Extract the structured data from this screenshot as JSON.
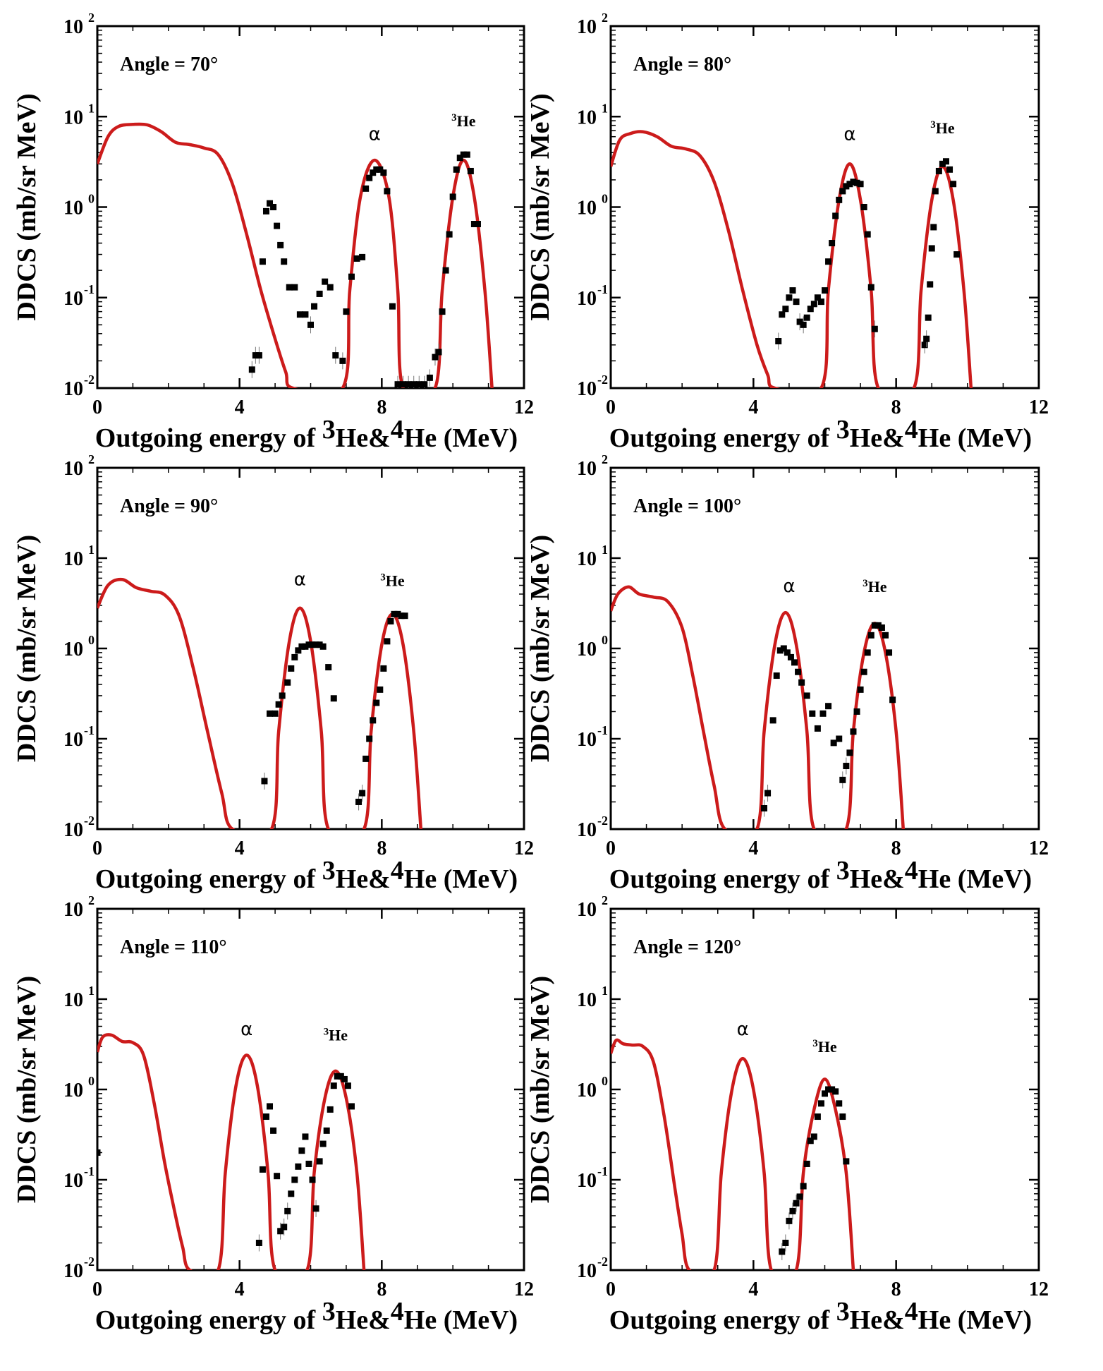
{
  "xlabel_prefix": "Outgoing energy of ",
  "xlabel_he3": "He&",
  "xlabel_he4": "He (MeV)",
  "xlabel_sup3": "3",
  "xlabel_sup4": "4",
  "ylabel": "DDCS (mb/sr MeV)",
  "alpha_symbol": "α",
  "he3_sup": "3",
  "he3_base": "He",
  "y_tick_exponents": [
    "-2",
    "-1",
    "0",
    "1",
    "2"
  ],
  "y_tick_base": "10",
  "colors": {
    "theory": "#cc1b1b",
    "experiment": "#000000"
  },
  "chart_data": [
    {
      "type": "line+scatter",
      "title": "Angle = 70°",
      "xlim": [
        0,
        12
      ],
      "ylim": [
        0.01,
        100
      ],
      "yscale": "log",
      "xticks": [
        "0",
        "4",
        "8",
        "12"
      ],
      "peak_labels": [
        {
          "text": "α",
          "x": 7.8,
          "y": 5.5
        },
        {
          "text": "3He",
          "x": 10.3,
          "y": 7.8
        }
      ],
      "series": [
        {
          "name": "",
          "kind": "theory-line",
          "x": [
            0,
            0.3,
            0.6,
            1.0,
            1.4,
            1.8,
            2.2,
            2.6,
            3.0,
            3.4,
            3.8,
            4.2,
            4.6,
            5.0,
            5.3,
            5.5,
            6.9,
            7.1,
            7.4,
            7.8,
            8.2,
            8.45,
            8.6,
            9.5,
            9.7,
            10.0,
            10.3,
            10.6,
            10.9,
            11.1
          ],
          "y": [
            3.0,
            6.0,
            7.8,
            8.2,
            8.1,
            6.8,
            5.2,
            4.9,
            4.5,
            3.8,
            1.8,
            0.5,
            0.12,
            0.035,
            0.015,
            0.01,
            0.01,
            0.12,
            1.3,
            3.3,
            1.3,
            0.12,
            0.01,
            0.01,
            0.12,
            1.3,
            3.3,
            1.3,
            0.12,
            0.01
          ]
        },
        {
          "name": "",
          "kind": "experiment",
          "x": [
            4.35,
            4.45,
            4.55,
            4.65,
            4.75,
            4.85,
            4.95,
            5.05,
            5.15,
            5.25,
            5.4,
            5.55,
            5.7,
            5.85,
            6.0,
            6.1,
            6.25,
            6.4,
            6.55,
            6.7,
            6.9,
            7.0,
            7.15,
            7.3,
            7.45,
            7.55,
            7.65,
            7.75,
            7.85,
            7.95,
            8.05,
            8.15,
            8.3,
            8.45,
            8.6,
            8.75,
            8.9,
            9.05,
            9.2,
            9.35,
            9.5,
            9.6,
            9.7,
            9.8,
            9.9,
            10.0,
            10.1,
            10.2,
            10.3,
            10.4,
            10.5,
            10.6,
            10.7
          ],
          "y": [
            0.016,
            0.023,
            0.023,
            0.25,
            0.9,
            1.1,
            1.0,
            0.62,
            0.38,
            0.25,
            0.13,
            0.13,
            0.065,
            0.065,
            0.05,
            0.08,
            0.11,
            0.15,
            0.13,
            0.023,
            0.02,
            0.07,
            0.17,
            0.27,
            0.28,
            1.6,
            2.1,
            2.4,
            2.6,
            2.6,
            2.4,
            1.5,
            0.08,
            0.011,
            0.011,
            0.011,
            0.011,
            0.011,
            0.011,
            0.013,
            0.022,
            0.025,
            0.07,
            0.2,
            0.5,
            1.3,
            2.6,
            3.5,
            3.8,
            3.8,
            2.5,
            0.65,
            0.65
          ]
        }
      ]
    },
    {
      "type": "line+scatter",
      "title": "Angle = 80°",
      "xlim": [
        0,
        12
      ],
      "ylim": [
        0.01,
        100
      ],
      "yscale": "log",
      "xticks": [
        "0",
        "4",
        "8",
        "12"
      ],
      "peak_labels": [
        {
          "text": "α",
          "x": 6.7,
          "y": 5.5
        },
        {
          "text": "3He",
          "x": 9.3,
          "y": 6.5
        }
      ],
      "series": [
        {
          "name": "",
          "kind": "theory-line",
          "x": [
            0,
            0.25,
            0.55,
            0.9,
            1.3,
            1.7,
            2.1,
            2.5,
            2.9,
            3.3,
            3.7,
            4.1,
            4.4,
            4.6,
            5.9,
            6.1,
            6.4,
            6.7,
            7.0,
            7.3,
            7.5,
            8.5,
            8.7,
            9.0,
            9.3,
            9.6,
            9.9,
            10.1
          ],
          "y": [
            2.8,
            5.5,
            6.5,
            6.8,
            6.0,
            4.7,
            4.4,
            3.7,
            1.9,
            0.55,
            0.12,
            0.03,
            0.014,
            0.01,
            0.01,
            0.12,
            1.2,
            3.0,
            1.2,
            0.12,
            0.01,
            0.01,
            0.12,
            1.2,
            2.8,
            1.2,
            0.12,
            0.01
          ]
        },
        {
          "name": "",
          "kind": "experiment",
          "x": [
            4.7,
            4.8,
            4.9,
            5.0,
            5.1,
            5.2,
            5.3,
            5.4,
            5.5,
            5.6,
            5.7,
            5.8,
            5.9,
            6.0,
            6.1,
            6.2,
            6.3,
            6.4,
            6.5,
            6.6,
            6.7,
            6.8,
            6.9,
            7.0,
            7.1,
            7.2,
            7.3,
            7.4,
            8.8,
            8.85,
            8.9,
            8.95,
            9.0,
            9.05,
            9.1,
            9.2,
            9.3,
            9.4,
            9.5,
            9.6,
            9.7
          ],
          "y": [
            0.033,
            0.065,
            0.075,
            0.1,
            0.12,
            0.09,
            0.054,
            0.05,
            0.06,
            0.075,
            0.085,
            0.1,
            0.09,
            0.12,
            0.25,
            0.4,
            0.8,
            1.2,
            1.5,
            1.7,
            1.8,
            1.9,
            1.85,
            1.8,
            1.0,
            0.5,
            0.13,
            0.045,
            0.03,
            0.035,
            0.06,
            0.14,
            0.35,
            0.6,
            1.5,
            2.5,
            3.0,
            3.2,
            2.6,
            1.8,
            0.3
          ]
        }
      ]
    },
    {
      "type": "line+scatter",
      "title": "Angle = 90°",
      "xlim": [
        0,
        12
      ],
      "ylim": [
        0.01,
        100
      ],
      "yscale": "log",
      "xticks": [
        "0",
        "4",
        "8",
        "12"
      ],
      "peak_labels": [
        {
          "text": "α",
          "x": 5.7,
          "y": 5.0
        },
        {
          "text": "3He",
          "x": 8.3,
          "y": 4.9
        }
      ],
      "series": [
        {
          "name": "",
          "kind": "theory-line",
          "x": [
            0,
            0.3,
            0.7,
            1.1,
            1.5,
            1.9,
            2.3,
            2.7,
            3.1,
            3.5,
            3.8,
            4.9,
            5.1,
            5.4,
            5.7,
            6.0,
            6.3,
            6.5,
            7.5,
            7.7,
            8.0,
            8.3,
            8.6,
            8.9,
            9.1
          ],
          "y": [
            2.8,
            5.0,
            5.8,
            4.7,
            4.3,
            3.9,
            2.3,
            0.6,
            0.12,
            0.025,
            0.01,
            0.01,
            0.12,
            1.2,
            2.8,
            1.2,
            0.12,
            0.01,
            0.01,
            0.12,
            1.1,
            2.4,
            1.1,
            0.12,
            0.01
          ]
        },
        {
          "name": "",
          "kind": "experiment",
          "x": [
            4.7,
            4.85,
            5.0,
            5.1,
            5.2,
            5.35,
            5.45,
            5.55,
            5.65,
            5.75,
            5.85,
            5.95,
            6.05,
            6.15,
            6.25,
            6.35,
            6.5,
            6.65,
            7.35,
            7.45,
            7.55,
            7.65,
            7.75,
            7.85,
            7.95,
            8.05,
            8.15,
            8.25,
            8.35,
            8.45,
            8.55,
            8.65
          ],
          "y": [
            0.034,
            0.19,
            0.19,
            0.24,
            0.3,
            0.42,
            0.6,
            0.8,
            0.95,
            1.05,
            1.05,
            1.1,
            1.1,
            1.1,
            1.1,
            1.05,
            0.62,
            0.28,
            0.02,
            0.025,
            0.06,
            0.1,
            0.16,
            0.25,
            0.35,
            0.6,
            1.2,
            2.0,
            2.4,
            2.4,
            2.3,
            2.3
          ]
        }
      ]
    },
    {
      "type": "line+scatter",
      "title": "Angle = 100°",
      "xlim": [
        0,
        12
      ],
      "ylim": [
        0.01,
        100
      ],
      "yscale": "log",
      "xticks": [
        "0",
        "4",
        "8",
        "12"
      ],
      "peak_labels": [
        {
          "text": "α",
          "x": 5.0,
          "y": 4.2
        },
        {
          "text": "3He",
          "x": 7.4,
          "y": 4.2
        }
      ],
      "series": [
        {
          "name": "",
          "kind": "theory-line",
          "x": [
            0,
            0.2,
            0.5,
            0.8,
            1.2,
            1.6,
            2.0,
            2.3,
            2.6,
            2.9,
            3.2,
            4.1,
            4.3,
            4.6,
            4.9,
            5.2,
            5.5,
            5.7,
            6.6,
            6.8,
            7.1,
            7.4,
            7.7,
            8.0,
            8.2
          ],
          "y": [
            2.6,
            4.0,
            4.8,
            4.0,
            3.7,
            3.3,
            1.7,
            0.5,
            0.12,
            0.03,
            0.01,
            0.01,
            0.12,
            1.1,
            2.5,
            1.1,
            0.12,
            0.01,
            0.01,
            0.12,
            0.9,
            1.9,
            0.9,
            0.12,
            0.01
          ]
        },
        {
          "name": "",
          "kind": "experiment",
          "x": [
            4.3,
            4.4,
            4.55,
            4.65,
            4.75,
            4.85,
            4.95,
            5.05,
            5.15,
            5.25,
            5.35,
            5.5,
            5.65,
            5.8,
            5.95,
            6.1,
            6.25,
            6.4,
            6.5,
            6.6,
            6.7,
            6.8,
            6.9,
            7.0,
            7.1,
            7.2,
            7.3,
            7.4,
            7.5,
            7.6,
            7.7,
            7.8,
            7.9
          ],
          "y": [
            0.017,
            0.025,
            0.16,
            0.5,
            0.95,
            1.0,
            0.9,
            0.8,
            0.7,
            0.55,
            0.42,
            0.3,
            0.19,
            0.13,
            0.19,
            0.23,
            0.09,
            0.1,
            0.035,
            0.05,
            0.07,
            0.12,
            0.2,
            0.35,
            0.55,
            0.9,
            1.4,
            1.8,
            1.8,
            1.7,
            1.4,
            0.9,
            0.27
          ]
        }
      ]
    },
    {
      "type": "line+scatter",
      "title": "Angle = 110°",
      "xlim": [
        0,
        12
      ],
      "ylim": [
        0.01,
        100
      ],
      "yscale": "log",
      "xticks": [
        "0",
        "4",
        "8",
        "12"
      ],
      "peak_labels": [
        {
          "text": "α",
          "x": 4.2,
          "y": 4.0
        },
        {
          "text": "3He",
          "x": 6.7,
          "y": 3.5
        }
      ],
      "series": [
        {
          "name": "",
          "kind": "theory-line",
          "x": [
            0,
            0.15,
            0.4,
            0.7,
            1.0,
            1.3,
            1.6,
            1.9,
            2.2,
            2.4,
            2.6,
            3.4,
            3.6,
            3.9,
            4.2,
            4.5,
            4.8,
            5.0,
            5.9,
            6.1,
            6.4,
            6.7,
            7.0,
            7.3,
            7.5
          ],
          "y": [
            2.6,
            3.8,
            4.0,
            3.4,
            3.3,
            2.4,
            0.7,
            0.15,
            0.04,
            0.018,
            0.01,
            0.01,
            0.12,
            1.1,
            2.4,
            1.1,
            0.12,
            0.01,
            0.01,
            0.12,
            0.8,
            1.6,
            0.8,
            0.12,
            0.01
          ]
        },
        {
          "name": "",
          "kind": "experiment",
          "x": [
            0.0,
            4.55,
            4.65,
            4.75,
            4.85,
            4.95,
            5.05,
            5.15,
            5.25,
            5.35,
            5.45,
            5.55,
            5.65,
            5.75,
            5.85,
            5.95,
            6.05,
            6.15,
            6.25,
            6.35,
            6.45,
            6.55,
            6.65,
            6.75,
            6.85,
            6.95,
            7.05,
            7.15
          ],
          "y": [
            0.2,
            0.02,
            0.13,
            0.5,
            0.65,
            0.35,
            0.11,
            0.027,
            0.03,
            0.045,
            0.07,
            0.1,
            0.14,
            0.21,
            0.3,
            0.15,
            0.1,
            0.048,
            0.16,
            0.25,
            0.35,
            0.6,
            1.1,
            1.4,
            1.4,
            1.3,
            1.1,
            0.65
          ]
        }
      ]
    },
    {
      "type": "line+scatter",
      "title": "Angle = 120°",
      "xlim": [
        0,
        12
      ],
      "ylim": [
        0.01,
        100
      ],
      "yscale": "log",
      "xticks": [
        "0",
        "4",
        "8",
        "12"
      ],
      "peak_labels": [
        {
          "text": "α",
          "x": 3.7,
          "y": 4.0
        },
        {
          "text": "3He",
          "x": 6.0,
          "y": 2.6
        }
      ],
      "series": [
        {
          "name": "",
          "kind": "theory-line",
          "x": [
            0,
            0.15,
            0.35,
            0.6,
            0.9,
            1.2,
            1.5,
            1.8,
            2.0,
            2.2,
            2.9,
            3.1,
            3.4,
            3.7,
            4.0,
            4.3,
            4.5,
            5.2,
            5.4,
            5.7,
            6.0,
            6.3,
            6.6,
            6.8
          ],
          "y": [
            2.5,
            3.5,
            3.2,
            3.1,
            3.0,
            2.0,
            0.5,
            0.08,
            0.025,
            0.01,
            0.01,
            0.12,
            1.0,
            2.2,
            1.0,
            0.12,
            0.01,
            0.01,
            0.12,
            0.6,
            1.3,
            0.6,
            0.12,
            0.01
          ]
        },
        {
          "name": "",
          "kind": "experiment",
          "x": [
            4.8,
            4.9,
            5.0,
            5.1,
            5.2,
            5.3,
            5.4,
            5.5,
            5.6,
            5.7,
            5.8,
            5.9,
            6.0,
            6.1,
            6.2,
            6.3,
            6.4,
            6.5,
            6.6
          ],
          "y": [
            0.016,
            0.02,
            0.035,
            0.045,
            0.055,
            0.065,
            0.085,
            0.15,
            0.27,
            0.3,
            0.5,
            0.7,
            0.9,
            1.0,
            1.0,
            0.95,
            0.7,
            0.5,
            0.16
          ]
        }
      ]
    }
  ]
}
